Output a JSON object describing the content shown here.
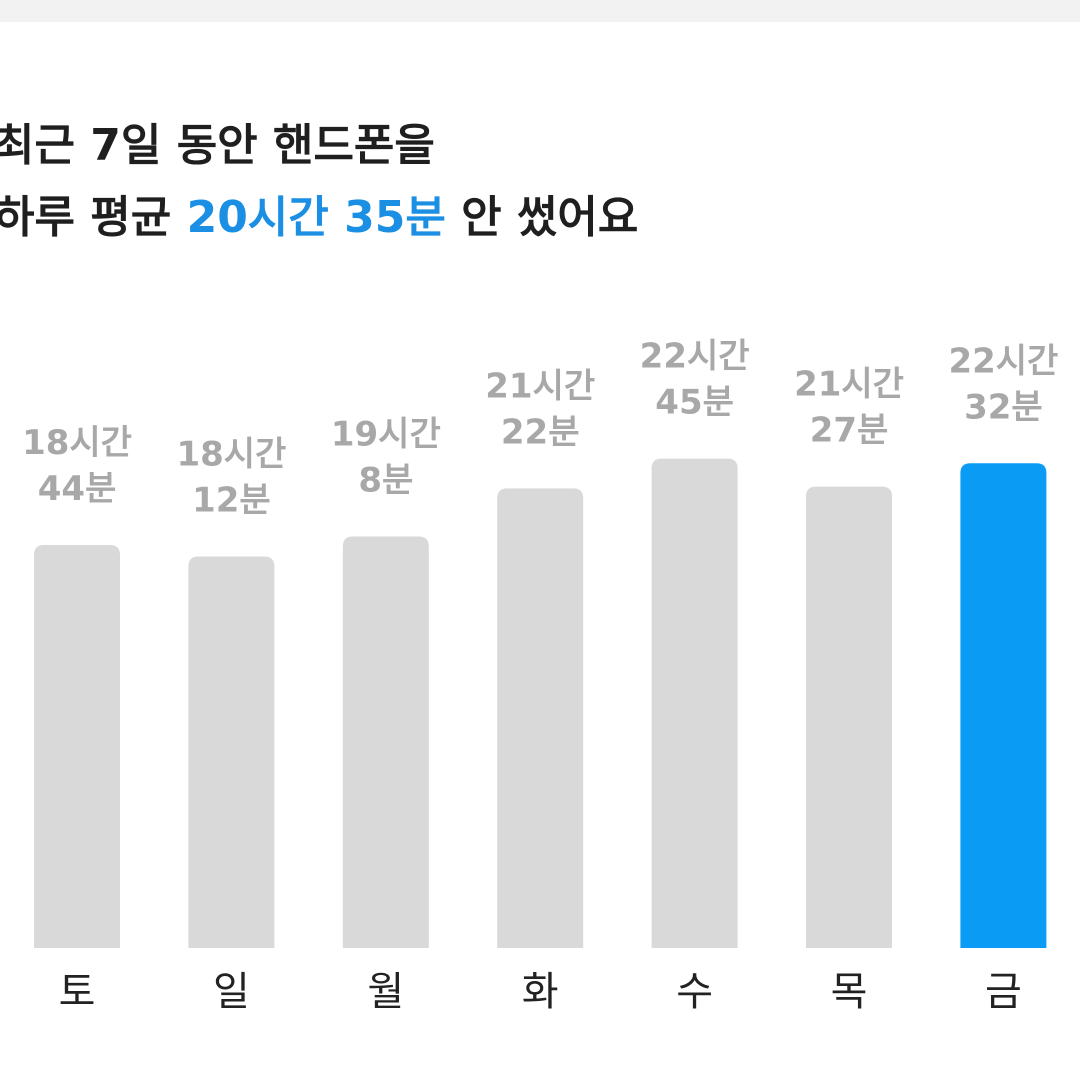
{
  "chart_data": {
    "type": "bar",
    "title": {
      "line1": "최근 7일 동안 핸드폰을",
      "line2_prefix": "하루 평균",
      "line2_highlight": "20시간 35분",
      "line2_suffix": "안 썼어요"
    },
    "categories": [
      "토",
      "일",
      "월",
      "화",
      "수",
      "목",
      "금"
    ],
    "values": [
      1124,
      1092,
      1148,
      1282,
      1365,
      1287,
      1352
    ],
    "value_labels": [
      [
        "18시간",
        "44분"
      ],
      [
        "18시간",
        "12분"
      ],
      [
        "19시간",
        "8분"
      ],
      [
        "21시간",
        "22분"
      ],
      [
        "22시간",
        "45분"
      ],
      [
        "21시간",
        "27분"
      ],
      [
        "22시간",
        "32분"
      ]
    ],
    "colors": [
      "#d9d9d9",
      "#d9d9d9",
      "#d9d9d9",
      "#d9d9d9",
      "#d9d9d9",
      "#d9d9d9",
      "#0a9bf5"
    ]
  }
}
